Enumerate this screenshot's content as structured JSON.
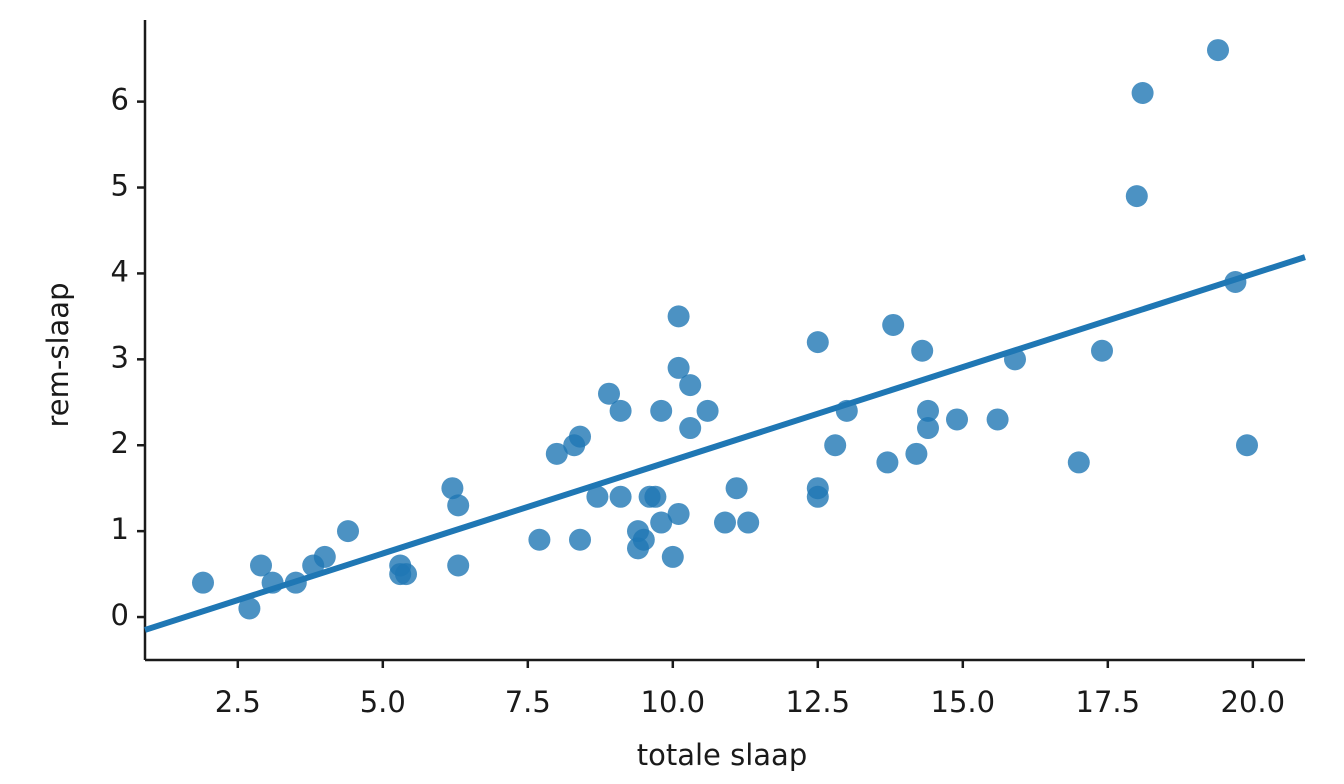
{
  "chart_data": {
    "type": "scatter",
    "xlabel": "totale slaap",
    "ylabel": "rem-slaap",
    "color": "#1f77b4",
    "x": [
      1.9,
      2.7,
      2.9,
      3.1,
      3.5,
      3.8,
      4.0,
      4.4,
      5.3,
      5.3,
      5.4,
      6.2,
      6.3,
      6.3,
      7.7,
      8.0,
      8.3,
      8.4,
      8.4,
      8.7,
      8.9,
      9.1,
      9.1,
      9.4,
      9.4,
      9.5,
      9.6,
      9.7,
      9.8,
      9.8,
      10.0,
      10.1,
      10.1,
      10.1,
      10.3,
      10.3,
      10.6,
      10.9,
      11.1,
      11.3,
      12.5,
      12.5,
      12.5,
      12.8,
      13.0,
      13.7,
      13.8,
      14.2,
      14.3,
      14.4,
      14.4,
      14.9,
      15.6,
      15.9,
      17.0,
      17.4,
      18.0,
      18.1,
      19.4,
      19.7,
      19.9
    ],
    "values": [
      0.4,
      0.1,
      0.6,
      0.4,
      0.4,
      0.6,
      0.7,
      1.0,
      0.6,
      0.5,
      0.5,
      1.5,
      1.3,
      0.6,
      0.9,
      1.9,
      2.0,
      2.1,
      0.9,
      1.4,
      2.6,
      2.4,
      1.4,
      1.0,
      0.8,
      0.9,
      1.4,
      1.4,
      2.4,
      1.1,
      0.7,
      3.5,
      2.9,
      1.2,
      2.7,
      2.2,
      2.4,
      1.1,
      1.5,
      1.1,
      3.2,
      1.5,
      1.4,
      2.0,
      2.4,
      1.8,
      3.4,
      1.9,
      3.1,
      2.2,
      2.4,
      2.3,
      2.3,
      3.0,
      1.8,
      3.1,
      4.9,
      6.1,
      6.6,
      3.9,
      2.0
    ],
    "regression": {
      "x": [
        0.9,
        20.9
      ],
      "y": [
        -0.15,
        4.19
      ]
    },
    "xlim": [
      0.9,
      20.9
    ],
    "ylim": [
      -0.5,
      6.95
    ],
    "xticks": [
      2.5,
      {
        "value": 5,
        "label": "5.0"
      },
      7.5,
      {
        "value": 10,
        "label": "10.0"
      },
      12.5,
      {
        "value": 15,
        "label": "15.0"
      },
      17.5,
      {
        "value": 20,
        "label": "20.0"
      }
    ],
    "yticks": [
      0,
      1,
      2,
      3,
      4,
      5,
      6
    ],
    "grid": false
  }
}
